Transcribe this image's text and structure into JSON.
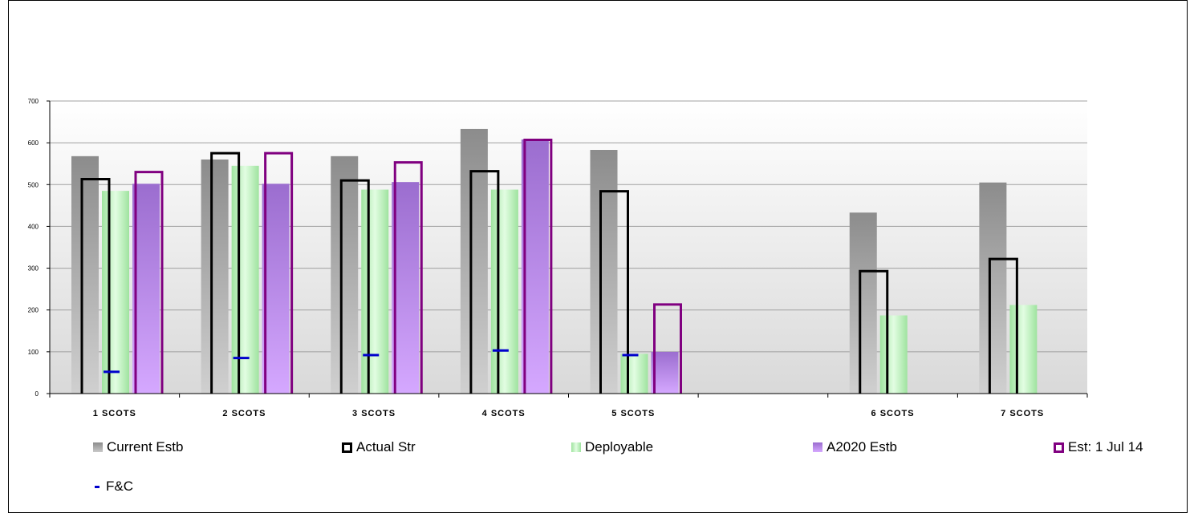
{
  "chart_data": {
    "type": "bar",
    "title": "",
    "xlabel": "",
    "ylabel": "",
    "ylim": [
      0,
      700
    ],
    "yticks": [
      "0",
      "100",
      "200",
      "300",
      "400",
      "500",
      "600",
      "700"
    ],
    "grid": true,
    "legend_position": "bottom",
    "categories": [
      "1 SCOTS",
      "2 SCOTS",
      "3 SCOTS",
      "4 SCOTS",
      "5 SCOTS",
      "",
      "6 SCOTS",
      "7 SCOTS"
    ],
    "series": [
      {
        "name": "Current Estb",
        "style": "gray-bar",
        "values": [
          568,
          560,
          568,
          633,
          583,
          null,
          433,
          505
        ]
      },
      {
        "name": "Actual Str",
        "style": "black-outline",
        "values": [
          513,
          575,
          510,
          532,
          484,
          null,
          293,
          322
        ]
      },
      {
        "name": "Deployable",
        "style": "green-bar",
        "values": [
          485,
          545,
          488,
          488,
          95,
          null,
          187,
          212
        ]
      },
      {
        "name": "A2020 Estb",
        "style": "purple-bar",
        "values": [
          502,
          502,
          506,
          608,
          100,
          null,
          null,
          null
        ]
      },
      {
        "name": "Est: 1 Jul 14",
        "style": "purple-outline",
        "values": [
          530,
          575,
          553,
          607,
          213,
          null,
          null,
          null
        ]
      },
      {
        "name": "F&C",
        "style": "blue-dash",
        "values": [
          52,
          85,
          92,
          103,
          92,
          null,
          null,
          null
        ]
      }
    ]
  },
  "colors": {
    "current_estb": "#a0a0a0",
    "actual_str": "#000000",
    "deployable": "#c6f5c6",
    "a2020_estb": "#b68ae6",
    "est_jul14": "#800080",
    "fc": "#0000cc",
    "gridline": "#a0a0a0"
  },
  "legend": {
    "items": [
      "Current Estb",
      "Actual Str",
      "Deployable",
      "A2020 Estb",
      "Est: 1 Jul 14",
      "F&C"
    ]
  }
}
